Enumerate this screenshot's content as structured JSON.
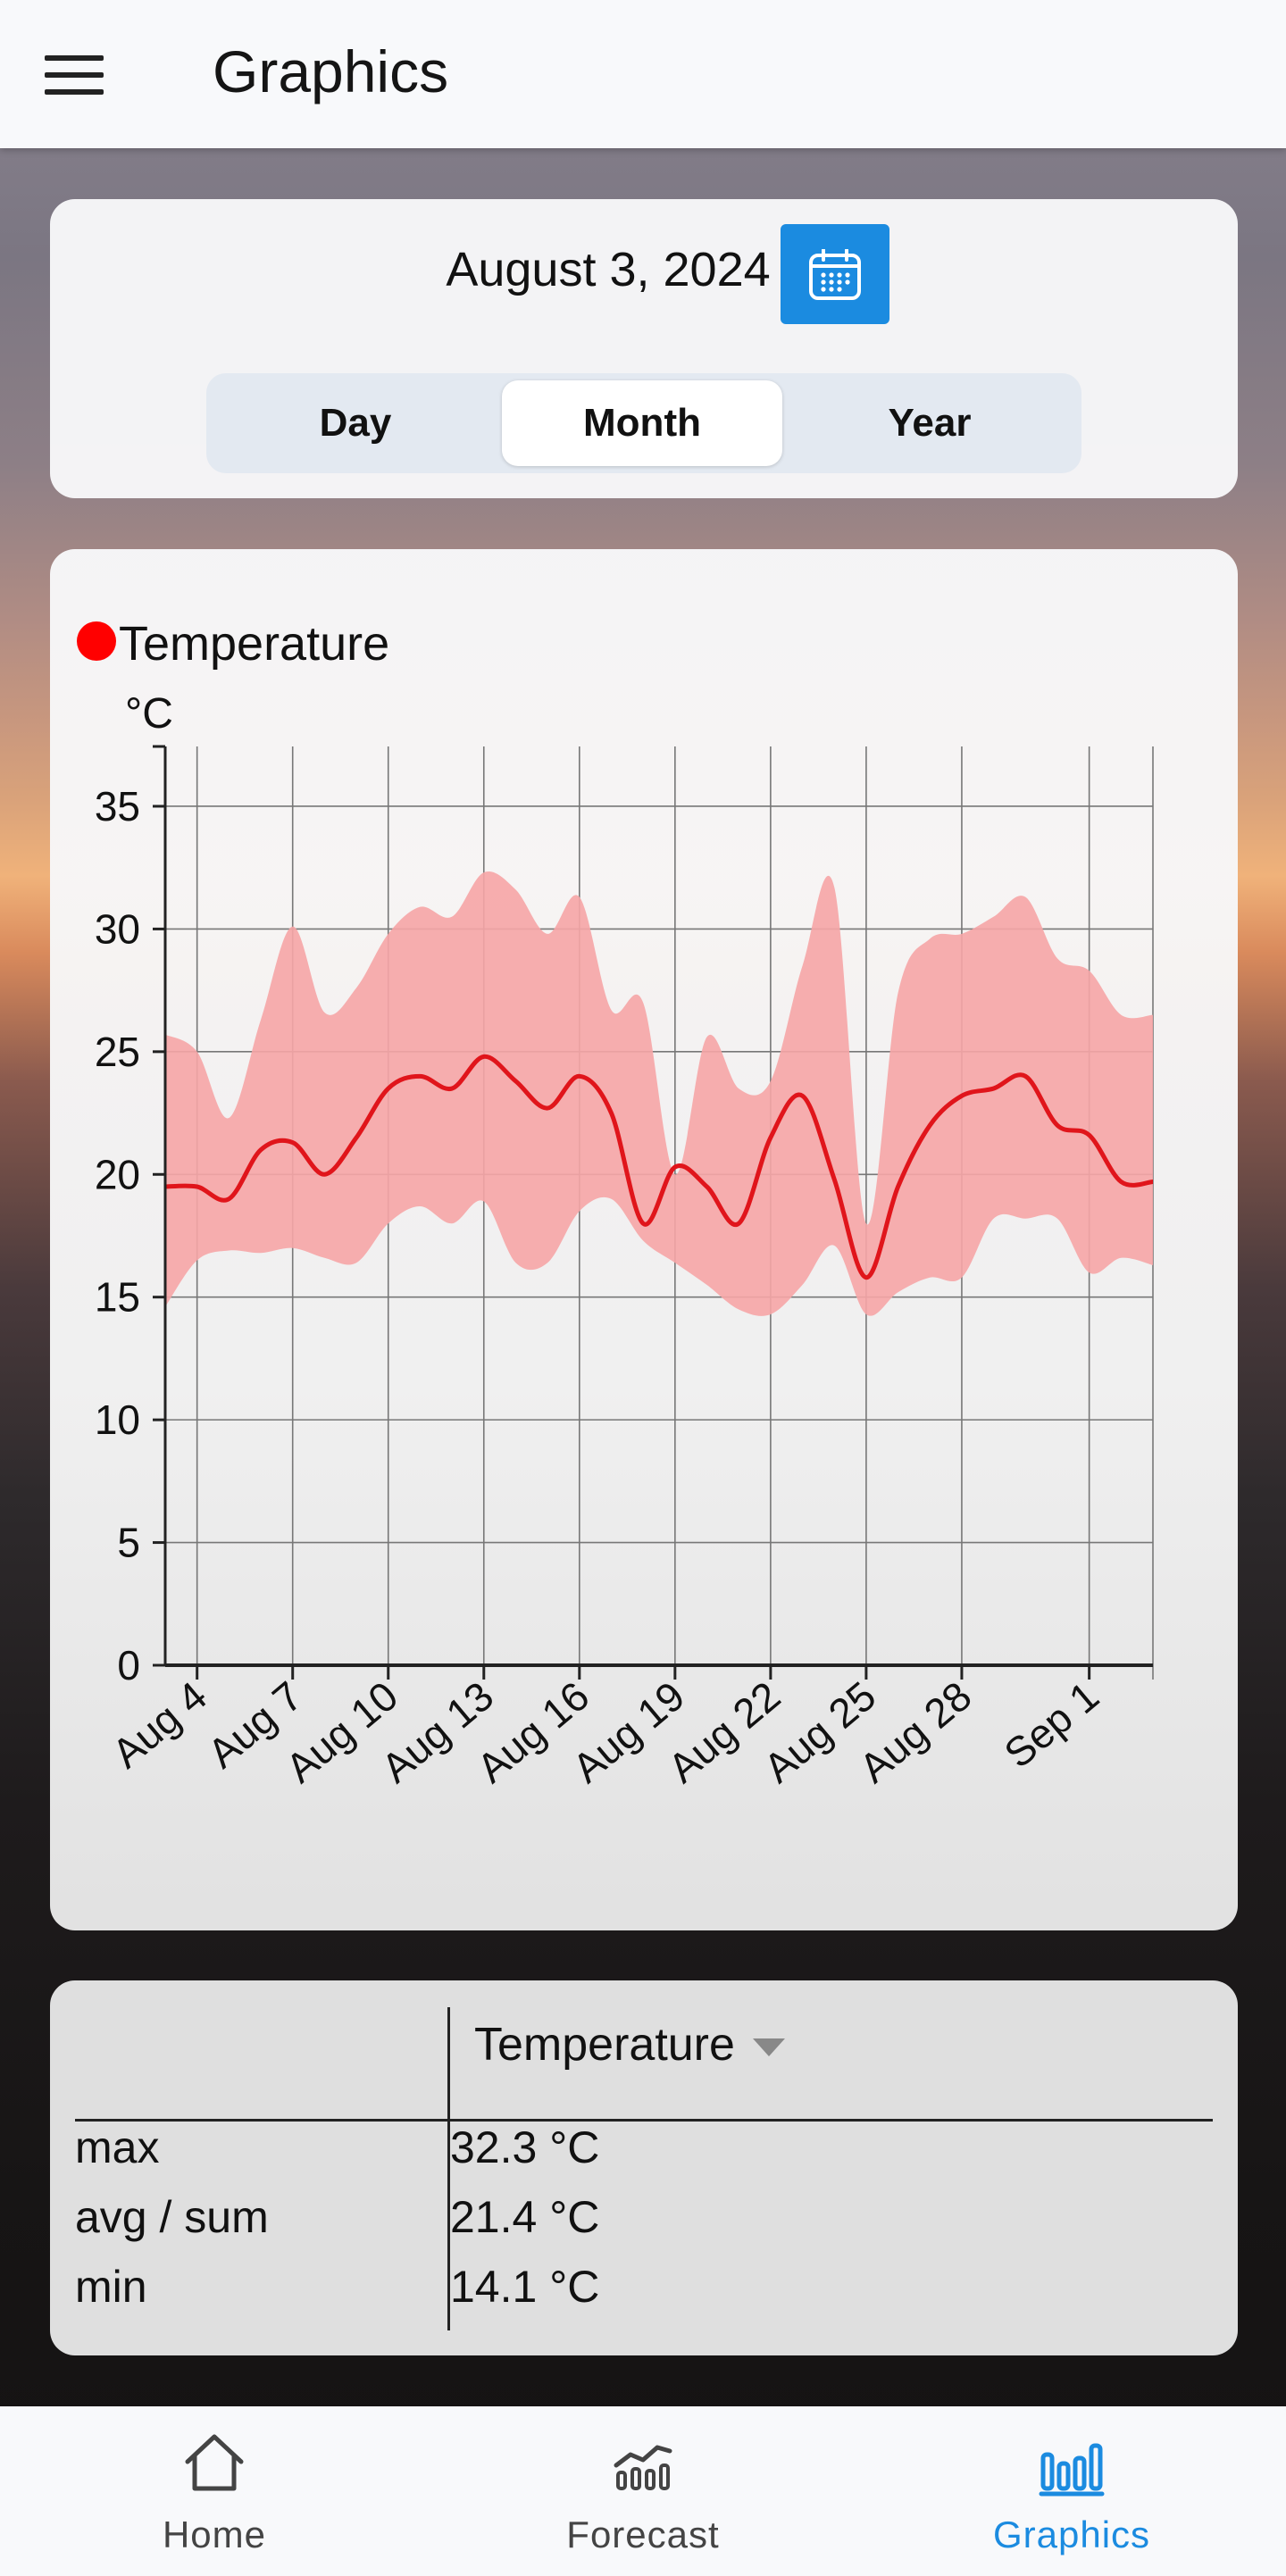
{
  "header": {
    "title": "Graphics",
    "menu_icon": "hamburger-menu-icon"
  },
  "date_selector": {
    "date": "August 3, 2024",
    "calendar_icon": "calendar-icon",
    "accent": "#1b8be0",
    "periods": [
      "Day",
      "Month",
      "Year"
    ],
    "selected_period": "Month"
  },
  "chart_card": {
    "legend_label": "Temperature",
    "legend_color": "#ff0000",
    "unit": "°C"
  },
  "chart_data": {
    "type": "line",
    "title": "",
    "xlabel": "",
    "ylabel": "°C",
    "ylim": [
      0,
      37
    ],
    "yticks": [
      0,
      5,
      10,
      15,
      20,
      25,
      30,
      35
    ],
    "x": [
      "2024-08-03",
      "2024-08-04",
      "2024-08-05",
      "2024-08-06",
      "2024-08-07",
      "2024-08-08",
      "2024-08-09",
      "2024-08-10",
      "2024-08-11",
      "2024-08-12",
      "2024-08-13",
      "2024-08-14",
      "2024-08-15",
      "2024-08-16",
      "2024-08-17",
      "2024-08-18",
      "2024-08-19",
      "2024-08-20",
      "2024-08-21",
      "2024-08-22",
      "2024-08-23",
      "2024-08-24",
      "2024-08-25",
      "2024-08-26",
      "2024-08-27",
      "2024-08-28",
      "2024-08-29",
      "2024-08-30",
      "2024-08-31",
      "2024-09-01",
      "2024-09-02",
      "2024-09-03"
    ],
    "xtick_labels": [
      "Aug 4",
      "Aug 7",
      "Aug 10",
      "Aug 13",
      "Aug 16",
      "Aug 19",
      "Aug 22",
      "Aug 25",
      "Aug 28",
      "Sep 1"
    ],
    "xtick_dates": [
      "2024-08-04",
      "2024-08-07",
      "2024-08-10",
      "2024-08-13",
      "2024-08-16",
      "2024-08-19",
      "2024-08-22",
      "2024-08-25",
      "2024-08-28",
      "2024-09-01"
    ],
    "series": [
      {
        "name": "Temperature",
        "color": "#e0151b",
        "values": [
          19.5,
          19.5,
          19.0,
          21.0,
          21.3,
          20.0,
          21.5,
          23.5,
          24.0,
          23.5,
          24.8,
          23.8,
          22.7,
          24.0,
          22.5,
          18.0,
          20.3,
          19.5,
          18.0,
          21.5,
          23.2,
          19.8,
          15.8,
          19.5,
          22.0,
          23.2,
          23.5,
          24.0,
          22.0,
          21.6,
          19.7,
          19.7
        ]
      },
      {
        "name": "max",
        "color": "#f6a5a6",
        "values": [
          25.7,
          25.0,
          22.3,
          26.3,
          30.1,
          26.6,
          27.6,
          29.8,
          30.9,
          30.5,
          32.3,
          31.6,
          29.8,
          31.3,
          26.7,
          27.0,
          20.0,
          25.6,
          23.5,
          23.8,
          28.5,
          31.7,
          18.0,
          27.4,
          29.6,
          29.8,
          30.5,
          31.3,
          28.8,
          28.3,
          26.5,
          26.5
        ]
      },
      {
        "name": "min",
        "color": "#f6a5a6",
        "values": [
          14.6,
          16.5,
          16.9,
          16.8,
          17.0,
          16.6,
          16.4,
          18.0,
          18.7,
          18.0,
          18.9,
          16.4,
          16.4,
          18.5,
          19.0,
          17.3,
          16.4,
          15.5,
          14.5,
          14.3,
          15.5,
          17.1,
          14.3,
          15.2,
          15.8,
          15.8,
          18.2,
          18.2,
          18.2,
          16.0,
          16.6,
          16.3
        ]
      }
    ]
  },
  "summary_table": {
    "header": "Temperature",
    "rows": [
      {
        "label": "max",
        "value": "32.3 °C"
      },
      {
        "label": "avg / sum",
        "value": "21.4 °C"
      },
      {
        "label": "min",
        "value": "14.1 °C"
      }
    ]
  },
  "bottom_nav": {
    "active_color": "#1b8be0",
    "items": [
      {
        "label": "Home",
        "icon": "home-icon"
      },
      {
        "label": "Forecast",
        "icon": "forecast-icon"
      },
      {
        "label": "Graphics",
        "icon": "bar-chart-icon"
      }
    ],
    "selected": "Graphics"
  }
}
